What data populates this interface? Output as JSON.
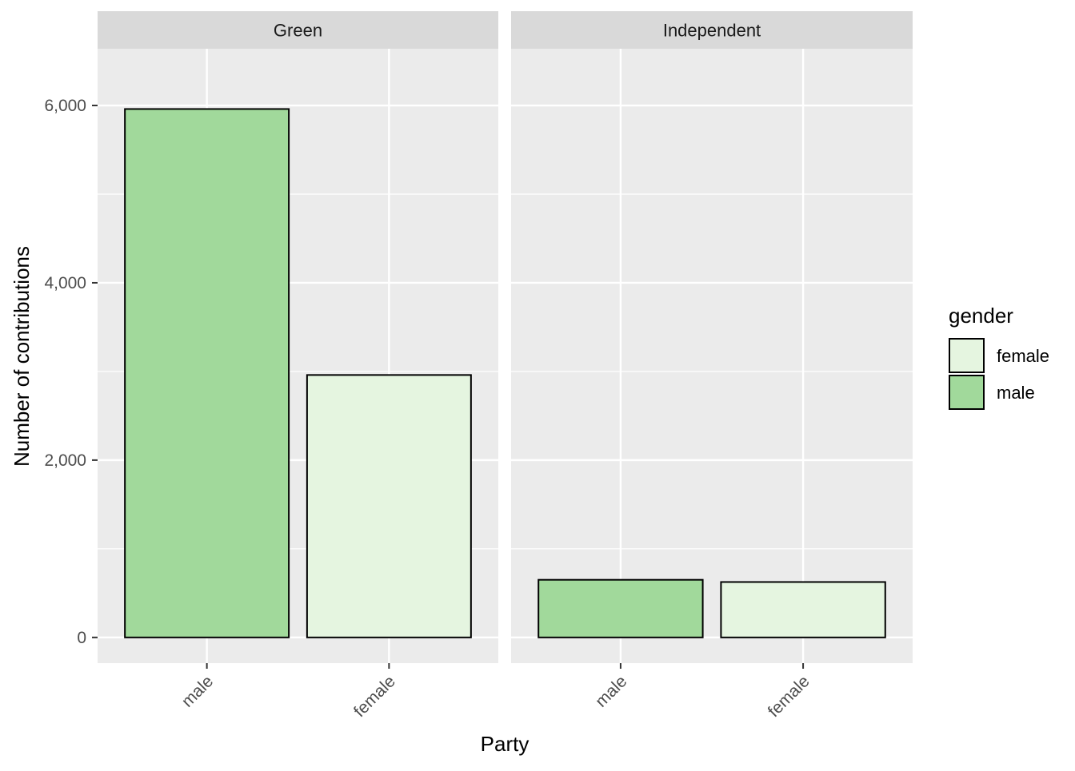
{
  "chart_data": {
    "type": "bar",
    "facets": [
      {
        "label": "Green",
        "categories": [
          "male",
          "female"
        ],
        "values": [
          5960,
          2960
        ]
      },
      {
        "label": "Independent",
        "categories": [
          "male",
          "female"
        ],
        "values": [
          650,
          625
        ]
      }
    ],
    "xlabel": "Party",
    "ylabel": "Number of contributions",
    "ylim": [
      -290,
      6640
    ],
    "yticks": [
      0,
      2000,
      4000,
      6000
    ],
    "ytick_labels": [
      "0",
      "2,000",
      "4,000",
      "6,000"
    ],
    "grid": true,
    "legend": {
      "title": "gender",
      "placement": "right",
      "items": [
        {
          "label": "female",
          "color": "#e5f5e0"
        },
        {
          "label": "male",
          "color": "#a1d99b"
        }
      ]
    },
    "colors": {
      "male": "#a1d99b",
      "female": "#e5f5e0"
    }
  }
}
